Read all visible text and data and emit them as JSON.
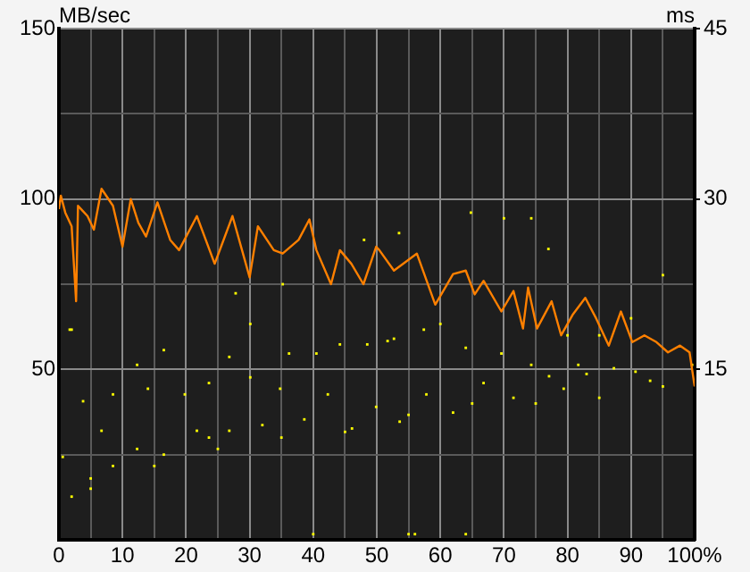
{
  "chart_data": {
    "type": "line",
    "ylabel": "MB/sec",
    "y2label": "ms",
    "xlim": [
      0,
      100
    ],
    "xticks": [
      0,
      {
        "value": 5,
        "label": null
      },
      10,
      {
        "value": 15,
        "label": null
      },
      20,
      {
        "value": 25,
        "label": null
      },
      30,
      {
        "value": 35,
        "label": null
      },
      40,
      {
        "value": 45,
        "label": null
      },
      50,
      {
        "value": 55,
        "label": null
      },
      60,
      {
        "value": 65,
        "label": null
      },
      70,
      {
        "value": 75,
        "label": null
      },
      80,
      {
        "value": 85,
        "label": null
      },
      90,
      {
        "value": 95,
        "label": null
      },
      {
        "value": 100,
        "label": "100%"
      }
    ],
    "ylim": [
      0,
      150
    ],
    "yticks": [
      {
        "value": 0,
        "label": null
      },
      {
        "value": 25,
        "label": null
      },
      50,
      {
        "value": 75,
        "label": null
      },
      100,
      {
        "value": 125,
        "label": null
      },
      150
    ],
    "y2lim": [
      0,
      45
    ],
    "y2ticks": [
      15,
      30,
      45
    ],
    "grid": true,
    "legend": false,
    "series": [
      {
        "color": "#ff8000",
        "marker": "none",
        "x": [
          0,
          0.3,
          1,
          2,
          2.7,
          3,
          3.5,
          4.5,
          5.5,
          6.7,
          8.5,
          10,
          11.3,
          12.5,
          13.7,
          15.5,
          17.5,
          18.9,
          21.7,
          24.5,
          27.3,
          30,
          31.3,
          33.8,
          35.2,
          37.7,
          39.4,
          40.5,
          42.8,
          44.2,
          46,
          47.9,
          49.9,
          50.4,
          52.7,
          56.3,
          59.2,
          62,
          64,
          65.4,
          66.8,
          69.6,
          71.5,
          73,
          73.8,
          75.2,
          77.5,
          79,
          80.8,
          82.8,
          84.5,
          86.5,
          88.4,
          90.2,
          92.1,
          94,
          95.8,
          97.7,
          99.2,
          100
        ],
        "values": [
          97,
          101,
          96,
          92,
          70,
          98,
          97,
          95,
          91,
          103,
          98,
          86,
          100,
          93,
          89,
          99,
          88,
          85,
          95,
          81,
          95,
          77,
          92,
          85,
          84,
          88,
          94,
          85,
          75,
          85,
          81,
          75,
          86,
          85,
          79,
          84,
          69,
          78,
          79,
          72,
          76,
          67,
          73,
          62,
          74,
          62,
          70,
          60,
          66,
          71,
          65,
          57,
          67,
          58,
          60,
          58,
          55,
          57,
          55,
          45
        ]
      },
      {
        "type": "scatter",
        "axis": "y2",
        "color": "#ffff00",
        "marker": "square",
        "x": [
          0.6,
          1.7,
          2,
          2,
          3.8,
          5,
          5,
          6.7,
          8.5,
          8.5,
          12.3,
          12.3,
          14,
          15,
          16.5,
          16.5,
          19.8,
          21.7,
          23.6,
          25,
          23.6,
          26.8,
          26.8,
          27.8,
          30.1,
          30.1,
          32,
          34.8,
          35.2,
          35,
          36.2,
          38.6,
          40,
          40.5,
          42.3,
          44.2,
          45,
          46.1,
          48,
          48.5,
          49.9,
          51.7,
          52.7,
          53.5,
          53.6,
          55,
          55,
          56,
          57.4,
          57.8,
          60,
          62,
          64,
          64,
          64.8,
          65,
          66.8,
          69.6,
          70,
          71.5,
          74.3,
          74.3,
          75,
          77,
          77.1,
          79.4,
          80,
          81.7,
          83,
          85,
          85,
          87.3,
          90,
          90.7,
          93,
          95,
          95,
          99.6
        ],
        "values": [
          7.3,
          18.5,
          18.5,
          3.8,
          12.2,
          5.4,
          4.5,
          9.6,
          12.8,
          6.5,
          15.4,
          8,
          13.3,
          6.5,
          16.7,
          7.5,
          12.8,
          9.6,
          13.8,
          8,
          9,
          16.1,
          9.6,
          21.7,
          14.3,
          19,
          10.1,
          13.3,
          22.5,
          9,
          16.4,
          10.6,
          0.5,
          16.4,
          12.8,
          17.2,
          9.5,
          9.8,
          26.4,
          17.2,
          11.7,
          17.5,
          17.7,
          27,
          10.4,
          11,
          0.5,
          0.5,
          18.5,
          12.8,
          19,
          11.2,
          16.9,
          0.5,
          28.8,
          12,
          13.8,
          16.4,
          28.3,
          12.5,
          15.4,
          28.3,
          12,
          25.6,
          14.4,
          13.3,
          18,
          15.4,
          14.6,
          12.5,
          18,
          15.1,
          19.5,
          14.8,
          14,
          23.3,
          13.5,
          15.4
        ]
      }
    ]
  }
}
